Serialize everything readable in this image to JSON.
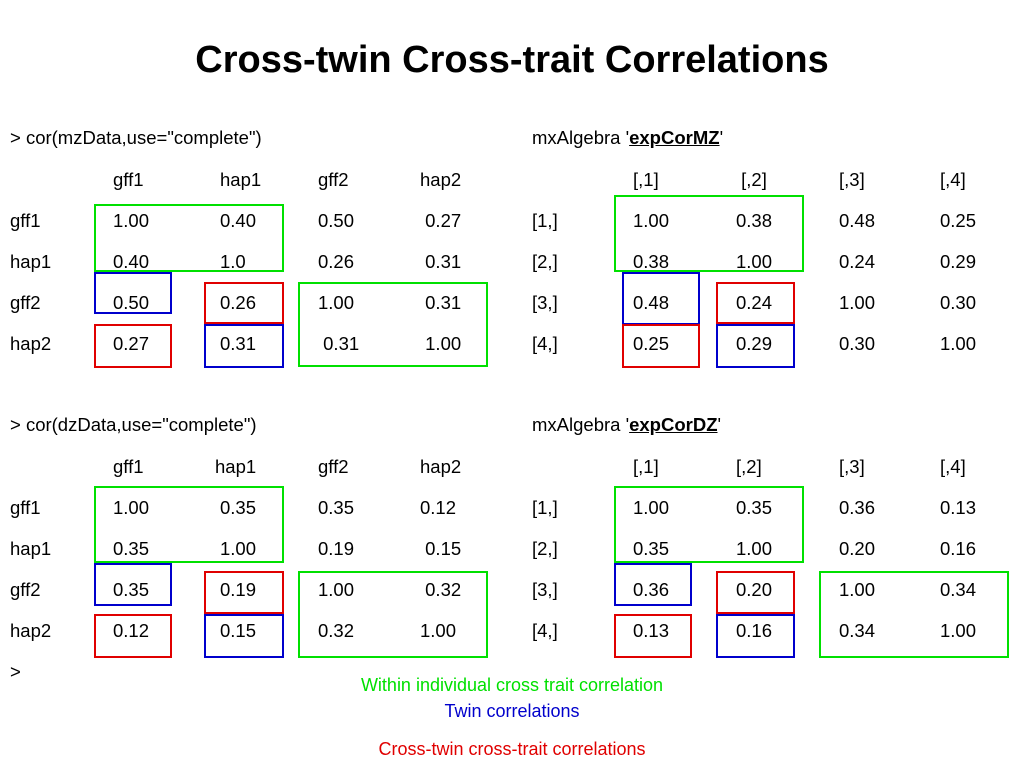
{
  "title": "Cross-twin Cross-trait Correlations",
  "colors": {
    "within": "#00e000",
    "twin": "#0000cc",
    "cross": "#e00000"
  },
  "panels": [
    {
      "id": "mz-cor",
      "header": "> cor(mzData,use=\"complete\")",
      "cols": [
        "gff1",
        "hap1",
        "gff2",
        "hap2"
      ],
      "rows": [
        {
          "label": "gff1",
          "cells": [
            "1.00",
            "0.40",
            "0.50",
            " 0.27"
          ]
        },
        {
          "label": "hap1",
          "cells": [
            "0.40",
            "1.0",
            "0.26",
            " 0.31"
          ]
        },
        {
          "label": "gff2",
          "cells": [
            "0.50",
            "0.26",
            "1.00",
            " 0.31"
          ]
        },
        {
          "label": "hap2",
          "cells": [
            "0.27",
            "0.31",
            " 0.31",
            " 1.00"
          ]
        }
      ]
    },
    {
      "id": "mz-exp",
      "header_prefix": "mxAlgebra '",
      "header_name": "expCorMZ",
      "header_suffix": "'",
      "cols": [
        "[,1]",
        " [,2]",
        "[,3]",
        "[,4]"
      ],
      "rows": [
        {
          "label": "[1,]",
          "cells": [
            "1.00",
            "0.38",
            "0.48",
            "0.25"
          ]
        },
        {
          "label": "[2,]",
          "cells": [
            "0.38",
            "1.00",
            "0.24",
            "0.29"
          ]
        },
        {
          "label": "[3,]",
          "cells": [
            "0.48",
            "0.24",
            "1.00",
            "0.30"
          ]
        },
        {
          "label": "[4,]",
          "cells": [
            "0.25",
            "0.29",
            "0.30",
            "1.00"
          ]
        }
      ]
    },
    {
      "id": "dz-cor",
      "header": "> cor(dzData,use=\"complete\")",
      "cols": [
        "gff1",
        "hap1",
        "gff2",
        "hap2"
      ],
      "rows": [
        {
          "label": "gff1",
          "cells": [
            "1.00",
            "0.35",
            "0.35",
            "0.12"
          ]
        },
        {
          "label": "hap1",
          "cells": [
            "0.35",
            "1.00",
            "0.19",
            " 0.15"
          ]
        },
        {
          "label": "gff2",
          "cells": [
            "0.35",
            "0.19",
            "1.00",
            " 0.32"
          ]
        },
        {
          "label": "hap2",
          "cells": [
            "0.12",
            "0.15",
            "0.32",
            "1.00"
          ]
        }
      ],
      "prompt": ">"
    },
    {
      "id": "dz-exp",
      "header_prefix": "mxAlgebra '",
      "header_name": "expCorDZ",
      "header_suffix": "'",
      "cols": [
        "[,1]",
        "[,2]",
        "[,3]",
        "[,4]"
      ],
      "rows": [
        {
          "label": "[1,]",
          "cells": [
            "1.00",
            "0.35",
            "0.36",
            "0.13"
          ]
        },
        {
          "label": "[2,]",
          "cells": [
            "0.35",
            "1.00",
            "0.20",
            "0.16"
          ]
        },
        {
          "label": "[3,]",
          "cells": [
            "0.36",
            "0.20",
            "1.00",
            "0.34"
          ]
        },
        {
          "label": "[4,]",
          "cells": [
            "0.13",
            "0.16",
            "0.34",
            "1.00"
          ]
        }
      ]
    }
  ],
  "legend": {
    "within": "Within individual cross trait correlation",
    "twin": "Twin correlations",
    "cross": "Cross-twin cross-trait correlations"
  }
}
